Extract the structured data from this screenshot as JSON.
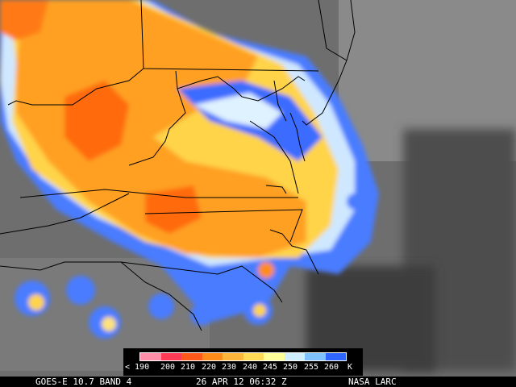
{
  "legend": {
    "ticks": [
      "< 190",
      "200",
      "210",
      "220",
      "230",
      "240",
      "245",
      "250",
      "255",
      "260",
      "K"
    ],
    "colors": [
      "#ff8fa8",
      "#ff3a55",
      "#ff5a1a",
      "#ff8c1a",
      "#ffb43a",
      "#ffdb55",
      "#ffff99",
      "#cfeeff",
      "#7fc0ff",
      "#2f66ff"
    ]
  },
  "footer": {
    "satellite": "GOES-E 10.7 BAND 4",
    "datetime": "26 APR 12 06:32 Z",
    "credit": "NASA LARC"
  }
}
